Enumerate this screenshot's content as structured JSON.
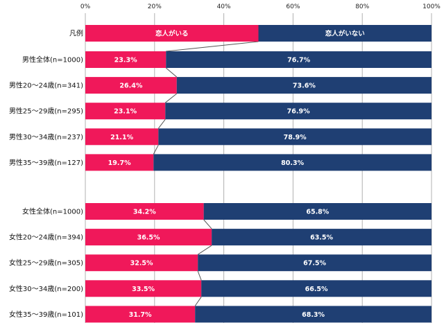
{
  "colors": {
    "pink": "#F0185A",
    "navy": "#1F3F73",
    "grid": "#B0B0B0",
    "connector": "#555555"
  },
  "chart_data": {
    "type": "bar",
    "orientation": "horizontal",
    "stacked": "percent",
    "xlim": [
      0,
      100
    ],
    "x_ticks": [
      "0%",
      "20%",
      "40%",
      "60%",
      "80%",
      "100%"
    ],
    "grid": true,
    "legend": {
      "label": "凡例",
      "series_labels": [
        "恋人がいる",
        "恋人がいない"
      ],
      "split": 50
    },
    "series": [
      {
        "name": "恋人がいる",
        "color": "#F0185A"
      },
      {
        "name": "恋人がいない",
        "color": "#1F3F73"
      }
    ],
    "groups": [
      {
        "rows": [
          {
            "category": "男性全体(n=1000)",
            "values": [
              23.3,
              76.7
            ],
            "labels": [
              "23.3%",
              "76.7%"
            ]
          },
          {
            "category": "男性20～24歳(n=341)",
            "values": [
              26.4,
              73.6
            ],
            "labels": [
              "26.4%",
              "73.6%"
            ]
          },
          {
            "category": "男性25～29歳(n=295)",
            "values": [
              23.1,
              76.9
            ],
            "labels": [
              "23.1%",
              "76.9%"
            ]
          },
          {
            "category": "男性30～34歳(n=237)",
            "values": [
              21.1,
              78.9
            ],
            "labels": [
              "21.1%",
              "78.9%"
            ]
          },
          {
            "category": "男性35～39歳(n=127)",
            "values": [
              19.7,
              80.3
            ],
            "labels": [
              "19.7%",
              "80.3%"
            ]
          }
        ]
      },
      {
        "rows": [
          {
            "category": "女性全体(n=1000)",
            "values": [
              34.2,
              65.8
            ],
            "labels": [
              "34.2%",
              "65.8%"
            ]
          },
          {
            "category": "女性20～24歳(n=394)",
            "values": [
              36.5,
              63.5
            ],
            "labels": [
              "36.5%",
              "63.5%"
            ]
          },
          {
            "category": "女性25～29歳(n=305)",
            "values": [
              32.5,
              67.5
            ],
            "labels": [
              "32.5%",
              "67.5%"
            ]
          },
          {
            "category": "女性30～34歳(n=200)",
            "values": [
              33.5,
              66.5
            ],
            "labels": [
              "33.5%",
              "66.5%"
            ]
          },
          {
            "category": "女性35～39歳(n=101)",
            "values": [
              31.7,
              68.3
            ],
            "labels": [
              "31.7%",
              "68.3%"
            ]
          }
        ]
      }
    ]
  }
}
